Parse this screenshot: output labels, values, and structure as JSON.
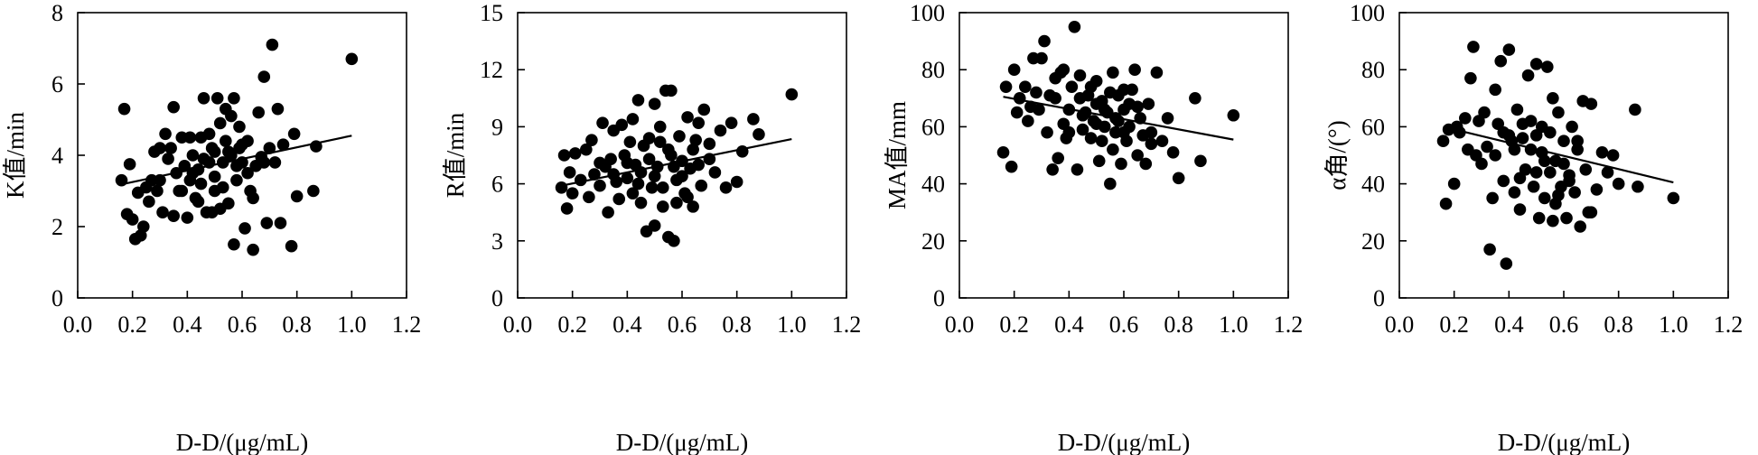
{
  "colors": {
    "ink": "#000000",
    "background": "#ffffff"
  },
  "chart_data": [
    {
      "type": "scatter",
      "xlabel": "D-D/(μg/mL)",
      "ylabel": "K值/min",
      "xlim": [
        0.0,
        1.2
      ],
      "ylim": [
        0,
        8
      ],
      "xticks": [
        "0.0",
        "0.2",
        "0.4",
        "0.6",
        "0.8",
        "1.0",
        "1.2"
      ],
      "yticks": [
        "0",
        "2",
        "4",
        "6",
        "8"
      ],
      "fit_line": {
        "x": [
          0.17,
          1.0
        ],
        "y": [
          3.2,
          4.55
        ]
      },
      "points": [
        [
          0.16,
          3.3
        ],
        [
          0.17,
          5.3
        ],
        [
          0.18,
          2.35
        ],
        [
          0.19,
          3.75
        ],
        [
          0.2,
          2.2
        ],
        [
          0.21,
          1.65
        ],
        [
          0.22,
          2.95
        ],
        [
          0.23,
          1.75
        ],
        [
          0.24,
          2.0
        ],
        [
          0.25,
          3.1
        ],
        [
          0.26,
          2.7
        ],
        [
          0.27,
          3.3
        ],
        [
          0.28,
          4.1
        ],
        [
          0.29,
          3.0
        ],
        [
          0.3,
          4.2
        ],
        [
          0.31,
          2.4
        ],
        [
          0.32,
          4.6
        ],
        [
          0.33,
          3.9
        ],
        [
          0.34,
          4.2
        ],
        [
          0.35,
          5.35
        ],
        [
          0.36,
          3.5
        ],
        [
          0.37,
          3.0
        ],
        [
          0.38,
          4.5
        ],
        [
          0.39,
          3.7
        ],
        [
          0.4,
          2.25
        ],
        [
          0.41,
          3.3
        ],
        [
          0.42,
          4.0
        ],
        [
          0.43,
          2.8
        ],
        [
          0.44,
          3.6
        ],
        [
          0.45,
          4.5
        ],
        [
          0.46,
          5.6
        ],
        [
          0.47,
          2.4
        ],
        [
          0.48,
          3.8
        ],
        [
          0.49,
          4.2
        ],
        [
          0.5,
          3.4
        ],
        [
          0.51,
          5.6
        ],
        [
          0.52,
          4.9
        ],
        [
          0.53,
          3.1
        ],
        [
          0.54,
          4.4
        ],
        [
          0.55,
          2.65
        ],
        [
          0.56,
          4.0
        ],
        [
          0.57,
          5.6
        ],
        [
          0.58,
          3.7
        ],
        [
          0.59,
          4.8
        ],
        [
          0.6,
          3.8
        ],
        [
          0.61,
          1.95
        ],
        [
          0.62,
          4.4
        ],
        [
          0.63,
          3.0
        ],
        [
          0.64,
          1.35
        ],
        [
          0.65,
          3.7
        ],
        [
          0.66,
          5.2
        ],
        [
          0.67,
          3.95
        ],
        [
          0.68,
          6.2
        ],
        [
          0.69,
          2.1
        ],
        [
          0.7,
          4.2
        ],
        [
          0.71,
          7.1
        ],
        [
          0.72,
          3.8
        ],
        [
          0.73,
          5.3
        ],
        [
          0.74,
          2.1
        ],
        [
          0.75,
          4.3
        ],
        [
          0.78,
          1.45
        ],
        [
          0.79,
          4.6
        ],
        [
          0.8,
          2.85
        ],
        [
          0.86,
          3.0
        ],
        [
          0.87,
          4.25
        ],
        [
          1.0,
          6.7
        ],
        [
          0.42,
          3.5
        ],
        [
          0.5,
          3.0
        ],
        [
          0.55,
          4.1
        ],
        [
          0.58,
          3.3
        ],
        [
          0.6,
          4.3
        ],
        [
          0.35,
          2.3
        ],
        [
          0.45,
          3.2
        ],
        [
          0.52,
          2.5
        ],
        [
          0.48,
          4.6
        ],
        [
          0.53,
          3.8
        ],
        [
          0.56,
          5.1
        ],
        [
          0.44,
          2.7
        ],
        [
          0.62,
          3.5
        ],
        [
          0.68,
          3.8
        ],
        [
          0.3,
          3.3
        ],
        [
          0.38,
          3.0
        ],
        [
          0.46,
          3.9
        ],
        [
          0.57,
          1.5
        ],
        [
          0.64,
          2.8
        ],
        [
          0.5,
          4.1
        ],
        [
          0.41,
          4.5
        ],
        [
          0.54,
          5.3
        ],
        [
          0.59,
          4.2
        ],
        [
          0.49,
          2.4
        ]
      ]
    },
    {
      "type": "scatter",
      "xlabel": "D-D/(μg/mL)",
      "ylabel": "R值/min",
      "xlim": [
        0.0,
        1.2
      ],
      "ylim": [
        0,
        15
      ],
      "xticks": [
        "0.0",
        "0.2",
        "0.4",
        "0.6",
        "0.8",
        "1.0",
        "1.2"
      ],
      "yticks": [
        "0",
        "3",
        "6",
        "9",
        "12",
        "15"
      ],
      "fit_line": {
        "x": [
          0.16,
          1.0
        ],
        "y": [
          5.9,
          8.35
        ]
      },
      "points": [
        [
          0.16,
          5.8
        ],
        [
          0.17,
          7.5
        ],
        [
          0.18,
          4.7
        ],
        [
          0.19,
          6.6
        ],
        [
          0.2,
          5.5
        ],
        [
          0.21,
          7.6
        ],
        [
          0.23,
          6.2
        ],
        [
          0.25,
          7.8
        ],
        [
          0.26,
          5.3
        ],
        [
          0.27,
          8.3
        ],
        [
          0.28,
          6.5
        ],
        [
          0.3,
          5.9
        ],
        [
          0.31,
          9.2
        ],
        [
          0.32,
          6.9
        ],
        [
          0.33,
          4.5
        ],
        [
          0.34,
          7.3
        ],
        [
          0.35,
          8.8
        ],
        [
          0.36,
          6.1
        ],
        [
          0.37,
          5.2
        ],
        [
          0.38,
          9.1
        ],
        [
          0.39,
          7.5
        ],
        [
          0.4,
          6.3
        ],
        [
          0.41,
          8.2
        ],
        [
          0.42,
          5.5
        ],
        [
          0.43,
          7.0
        ],
        [
          0.44,
          10.4
        ],
        [
          0.45,
          6.6
        ],
        [
          0.46,
          8.0
        ],
        [
          0.47,
          3.5
        ],
        [
          0.48,
          7.3
        ],
        [
          0.49,
          5.8
        ],
        [
          0.5,
          10.2
        ],
        [
          0.51,
          6.9
        ],
        [
          0.52,
          8.2
        ],
        [
          0.53,
          4.8
        ],
        [
          0.54,
          10.9
        ],
        [
          0.55,
          3.2
        ],
        [
          0.56,
          7.5
        ],
        [
          0.57,
          3.0
        ],
        [
          0.58,
          6.2
        ],
        [
          0.59,
          8.5
        ],
        [
          0.6,
          7.2
        ],
        [
          0.61,
          5.5
        ],
        [
          0.62,
          9.5
        ],
        [
          0.63,
          6.8
        ],
        [
          0.64,
          4.8
        ],
        [
          0.65,
          8.3
        ],
        [
          0.66,
          7.0
        ],
        [
          0.67,
          5.9
        ],
        [
          0.68,
          9.9
        ],
        [
          0.7,
          7.3
        ],
        [
          0.72,
          6.6
        ],
        [
          0.74,
          8.8
        ],
        [
          0.76,
          5.8
        ],
        [
          0.78,
          9.2
        ],
        [
          0.8,
          6.1
        ],
        [
          0.82,
          7.7
        ],
        [
          0.86,
          9.4
        ],
        [
          0.88,
          8.6
        ],
        [
          1.0,
          10.7
        ],
        [
          0.5,
          6.4
        ],
        [
          0.45,
          5.0
        ],
        [
          0.55,
          7.8
        ],
        [
          0.6,
          6.4
        ],
        [
          0.4,
          7.1
        ],
        [
          0.53,
          5.8
        ],
        [
          0.57,
          6.9
        ],
        [
          0.48,
          8.4
        ],
        [
          0.62,
          5.3
        ],
        [
          0.35,
          6.5
        ],
        [
          0.3,
          7.1
        ],
        [
          0.52,
          9.0
        ],
        [
          0.58,
          5.0
        ],
        [
          0.64,
          7.8
        ],
        [
          0.44,
          6.0
        ],
        [
          0.5,
          3.8
        ],
        [
          0.56,
          10.9
        ],
        [
          0.66,
          9.2
        ],
        [
          0.7,
          8.1
        ],
        [
          0.42,
          9.4
        ]
      ]
    },
    {
      "type": "scatter",
      "xlabel": "D-D/(μg/mL)",
      "ylabel": "MA值/mm",
      "xlim": [
        0.0,
        1.2
      ],
      "ylim": [
        0,
        100
      ],
      "xticks": [
        "0.0",
        "0.2",
        "0.4",
        "0.6",
        "0.8",
        "1.0",
        "1.2"
      ],
      "yticks": [
        "0",
        "20",
        "40",
        "60",
        "80",
        "100"
      ],
      "fit_line": {
        "x": [
          0.16,
          1.0
        ],
        "y": [
          70.5,
          55.5
        ]
      },
      "points": [
        [
          0.16,
          51
        ],
        [
          0.17,
          74
        ],
        [
          0.19,
          46
        ],
        [
          0.2,
          80
        ],
        [
          0.21,
          65
        ],
        [
          0.22,
          70
        ],
        [
          0.24,
          74
        ],
        [
          0.25,
          62
        ],
        [
          0.26,
          67
        ],
        [
          0.27,
          84
        ],
        [
          0.28,
          72
        ],
        [
          0.29,
          66
        ],
        [
          0.3,
          84
        ],
        [
          0.31,
          90
        ],
        [
          0.32,
          58
        ],
        [
          0.33,
          71
        ],
        [
          0.34,
          45
        ],
        [
          0.35,
          77
        ],
        [
          0.36,
          49
        ],
        [
          0.37,
          79
        ],
        [
          0.38,
          61
        ],
        [
          0.39,
          56
        ],
        [
          0.4,
          66
        ],
        [
          0.41,
          74
        ],
        [
          0.42,
          95
        ],
        [
          0.43,
          45
        ],
        [
          0.44,
          78
        ],
        [
          0.45,
          59
        ],
        [
          0.46,
          65
        ],
        [
          0.47,
          71
        ],
        [
          0.48,
          56
        ],
        [
          0.49,
          62
        ],
        [
          0.5,
          76
        ],
        [
          0.51,
          48
        ],
        [
          0.52,
          69
        ],
        [
          0.53,
          60
        ],
        [
          0.54,
          65
        ],
        [
          0.55,
          40
        ],
        [
          0.56,
          79
        ],
        [
          0.57,
          58
        ],
        [
          0.58,
          71
        ],
        [
          0.59,
          47
        ],
        [
          0.6,
          66
        ],
        [
          0.61,
          55
        ],
        [
          0.62,
          60
        ],
        [
          0.63,
          73
        ],
        [
          0.64,
          80
        ],
        [
          0.65,
          50
        ],
        [
          0.66,
          63
        ],
        [
          0.67,
          57
        ],
        [
          0.68,
          47
        ],
        [
          0.69,
          68
        ],
        [
          0.7,
          58
        ],
        [
          0.72,
          79
        ],
        [
          0.74,
          55
        ],
        [
          0.76,
          63
        ],
        [
          0.78,
          51
        ],
        [
          0.8,
          42
        ],
        [
          0.86,
          70
        ],
        [
          0.88,
          48
        ],
        [
          1.0,
          64
        ],
        [
          0.5,
          68
        ],
        [
          0.55,
          72
        ],
        [
          0.45,
          64
        ],
        [
          0.6,
          58
        ],
        [
          0.53,
          66
        ],
        [
          0.57,
          63
        ],
        [
          0.48,
          74
        ],
        [
          0.62,
          68
        ],
        [
          0.4,
          58
        ],
        [
          0.35,
          70
        ],
        [
          0.52,
          55
        ],
        [
          0.58,
          62
        ],
        [
          0.65,
          67
        ],
        [
          0.7,
          54
        ],
        [
          0.44,
          70
        ],
        [
          0.5,
          61
        ],
        [
          0.56,
          52
        ],
        [
          0.38,
          80
        ],
        [
          0.6,
          73
        ]
      ]
    },
    {
      "type": "scatter",
      "xlabel": "D-D/(μg/mL)",
      "ylabel": "α角/(°)",
      "xlim": [
        0.0,
        1.2
      ],
      "ylim": [
        0,
        100
      ],
      "xticks": [
        "0.0",
        "0.2",
        "0.4",
        "0.6",
        "0.8",
        "1.0",
        "1.2"
      ],
      "yticks": [
        "0",
        "20",
        "40",
        "60",
        "80",
        "100"
      ],
      "fit_line": {
        "x": [
          0.16,
          1.0
        ],
        "y": [
          60.0,
          40.5
        ]
      },
      "points": [
        [
          0.16,
          55
        ],
        [
          0.17,
          33
        ],
        [
          0.18,
          59
        ],
        [
          0.2,
          40
        ],
        [
          0.21,
          60
        ],
        [
          0.22,
          58
        ],
        [
          0.24,
          63
        ],
        [
          0.25,
          52
        ],
        [
          0.26,
          77
        ],
        [
          0.27,
          88
        ],
        [
          0.28,
          50
        ],
        [
          0.29,
          62
        ],
        [
          0.3,
          47
        ],
        [
          0.31,
          65
        ],
        [
          0.32,
          53
        ],
        [
          0.33,
          17
        ],
        [
          0.34,
          35
        ],
        [
          0.35,
          73
        ],
        [
          0.36,
          61
        ],
        [
          0.37,
          83
        ],
        [
          0.38,
          41
        ],
        [
          0.39,
          12
        ],
        [
          0.4,
          87
        ],
        [
          0.41,
          55
        ],
        [
          0.42,
          37
        ],
        [
          0.43,
          66
        ],
        [
          0.44,
          31
        ],
        [
          0.45,
          56
        ],
        [
          0.46,
          45
        ],
        [
          0.47,
          78
        ],
        [
          0.48,
          62
        ],
        [
          0.49,
          39
        ],
        [
          0.5,
          82
        ],
        [
          0.51,
          28
        ],
        [
          0.52,
          51
        ],
        [
          0.53,
          35
        ],
        [
          0.54,
          81
        ],
        [
          0.55,
          58
        ],
        [
          0.56,
          27
        ],
        [
          0.57,
          48
        ],
        [
          0.58,
          65
        ],
        [
          0.59,
          39
        ],
        [
          0.6,
          55
        ],
        [
          0.61,
          28
        ],
        [
          0.62,
          43
        ],
        [
          0.63,
          60
        ],
        [
          0.64,
          37
        ],
        [
          0.65,
          52
        ],
        [
          0.66,
          25
        ],
        [
          0.67,
          69
        ],
        [
          0.68,
          45
        ],
        [
          0.69,
          30
        ],
        [
          0.7,
          68
        ],
        [
          0.72,
          38
        ],
        [
          0.74,
          51
        ],
        [
          0.76,
          44
        ],
        [
          0.78,
          50
        ],
        [
          0.8,
          40
        ],
        [
          0.86,
          66
        ],
        [
          0.87,
          39
        ],
        [
          1.0,
          35
        ],
        [
          0.5,
          57
        ],
        [
          0.45,
          61
        ],
        [
          0.55,
          44
        ],
        [
          0.6,
          47
        ],
        [
          0.4,
          57
        ],
        [
          0.53,
          48
        ],
        [
          0.57,
          33
        ],
        [
          0.48,
          52
        ],
        [
          0.62,
          41
        ],
        [
          0.35,
          50
        ],
        [
          0.52,
          60
        ],
        [
          0.58,
          36
        ],
        [
          0.65,
          55
        ],
        [
          0.7,
          30
        ],
        [
          0.44,
          42
        ],
        [
          0.38,
          58
        ],
        [
          0.56,
          70
        ],
        [
          0.5,
          44
        ],
        [
          0.42,
          52
        ]
      ]
    }
  ]
}
